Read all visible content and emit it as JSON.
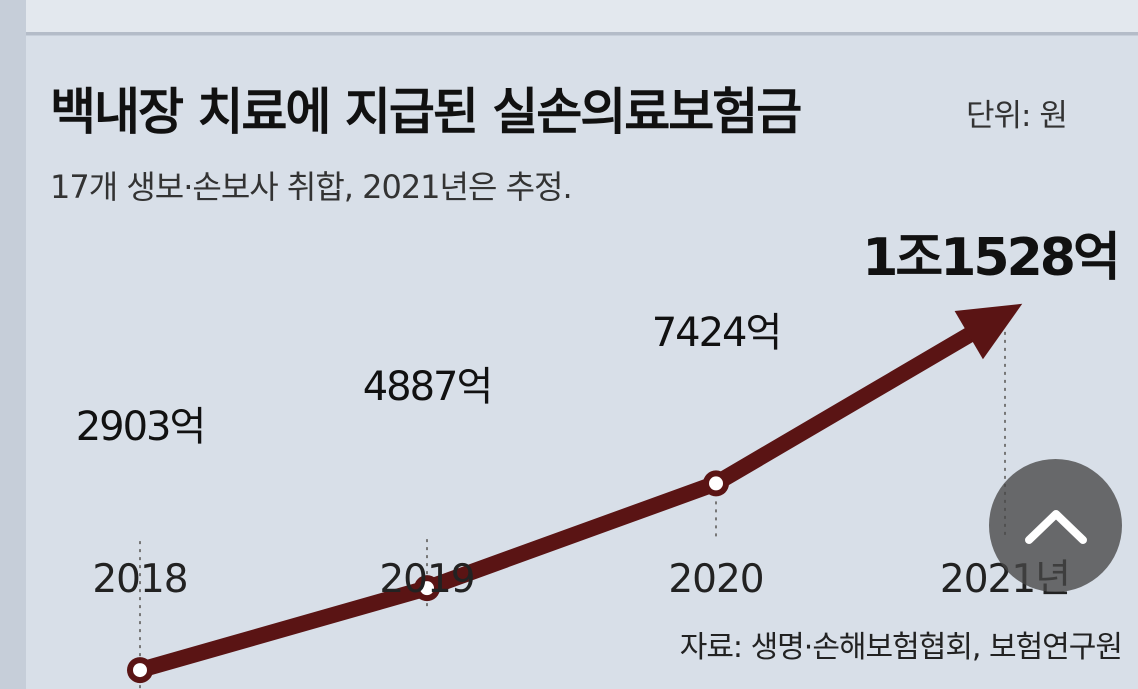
{
  "header": {
    "title": "백내장 치료에 지급된 실손의료보험금",
    "unit": "단위: 원",
    "subtitle": "17개 생보·손보사 취합, 2021년은 추정."
  },
  "source": "자료: 생명·손해보험협회, 보험연구원",
  "colors": {
    "line": "#5a1414",
    "marker_fill": "#ffffff",
    "background": "#d8dfe8"
  },
  "chart_data": {
    "type": "line",
    "title": "백내장 치료에 지급된 실손의료보험금",
    "subtitle": "17개 생보·손보사 취합, 2021년은 추정.",
    "categories": [
      "2018",
      "2019",
      "2020",
      "2021년"
    ],
    "series": [
      {
        "values": [
          2903,
          4887,
          7424,
          11528
        ]
      }
    ],
    "data_labels": [
      "2903억",
      "4887억",
      "7424억",
      "1조1528억"
    ],
    "last_point_estimated": true,
    "ylim": [
      0,
      12000
    ],
    "grid": false,
    "legend": "none"
  },
  "scroll_button": {
    "icon": "chevron-up-icon"
  }
}
